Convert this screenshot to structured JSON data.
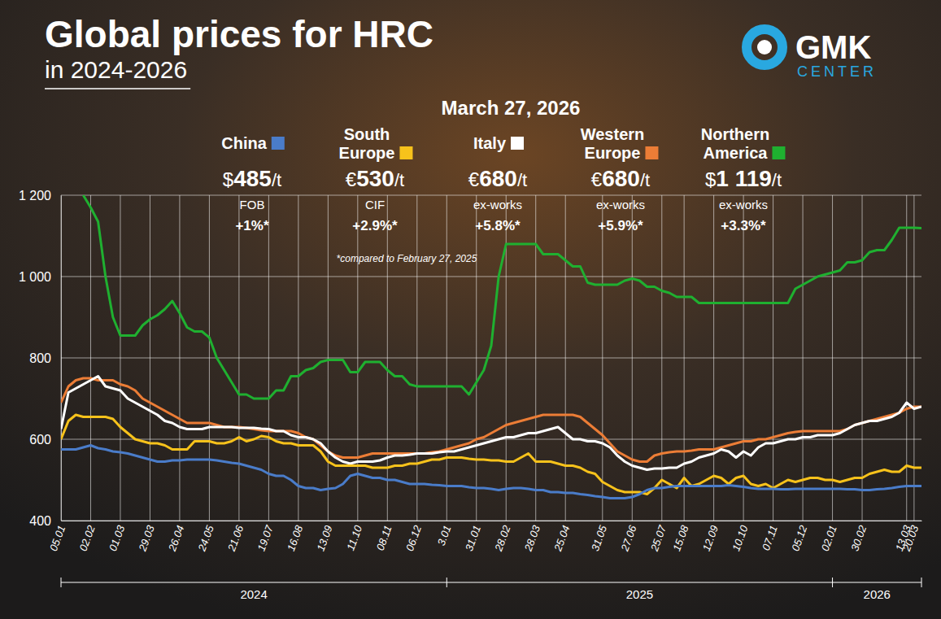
{
  "chart_data": {
    "type": "line",
    "title": "Global prices for HRC",
    "subtitle": "in 2024-2026",
    "date_label": "March 27, 2026",
    "note": "*compared to February 27, 2025",
    "logo": {
      "name": "GMK",
      "tagline": "CENTER"
    },
    "categories": [
      "05.01",
      null,
      null,
      null,
      "02.02",
      null,
      null,
      null,
      "01.03",
      null,
      null,
      null,
      "29.03",
      null,
      null,
      null,
      "26.04",
      null,
      null,
      null,
      "24.05",
      null,
      null,
      null,
      "21.06",
      null,
      null,
      null,
      "19.07",
      null,
      null,
      null,
      "16.08",
      null,
      null,
      null,
      "13.09",
      null,
      null,
      null,
      "11.10",
      null,
      null,
      null,
      "08.11",
      null,
      null,
      null,
      "06.12",
      null,
      null,
      null,
      "3.01",
      null,
      null,
      null,
      "31.01",
      null,
      null,
      null,
      "28.02",
      null,
      null,
      null,
      "28.03",
      null,
      null,
      null,
      "25.04",
      null,
      null,
      null,
      null,
      "31.05",
      null,
      null,
      null,
      "27.06",
      null,
      null,
      null,
      "25.07",
      null,
      null,
      "15.08",
      null,
      null,
      null,
      "12.09",
      null,
      null,
      null,
      "10.10",
      null,
      null,
      null,
      "07.11",
      null,
      null,
      null,
      "05.12",
      null,
      null,
      null,
      "02.01",
      null,
      null,
      null,
      "30.02",
      null,
      null,
      null,
      null,
      null,
      "13.03",
      "20.03",
      null
    ],
    "x_groups": [
      {
        "label": "2024",
        "start": "05.01"
      },
      {
        "label": "2025",
        "start": "3.01"
      },
      {
        "label": "2026",
        "start": "02.01"
      }
    ],
    "series": [
      {
        "name": "China",
        "color": "#4a7cc9",
        "latest": {
          "currency": "$",
          "price": 485,
          "unit": "/t",
          "basis": "FOB",
          "change": "+1%*"
        },
        "values": [
          575,
          575,
          575,
          580,
          585,
          578,
          575,
          570,
          568,
          565,
          560,
          555,
          550,
          545,
          545,
          548,
          548,
          550,
          550,
          550,
          550,
          548,
          545,
          542,
          540,
          535,
          530,
          525,
          515,
          510,
          510,
          500,
          485,
          480,
          480,
          475,
          478,
          480,
          490,
          510,
          515,
          510,
          505,
          505,
          500,
          500,
          495,
          490,
          490,
          490,
          488,
          487,
          485,
          485,
          485,
          482,
          480,
          480,
          478,
          475,
          478,
          480,
          480,
          478,
          475,
          475,
          470,
          470,
          468,
          468,
          465,
          463,
          460,
          458,
          455,
          455,
          455,
          458,
          465,
          475,
          480,
          480,
          483,
          485,
          485,
          485,
          485,
          485,
          485,
          485,
          487,
          485,
          483,
          480,
          478,
          478,
          478,
          477,
          477,
          478,
          478,
          478,
          478,
          478,
          478,
          478,
          477,
          477,
          475,
          475,
          477,
          478,
          480,
          483,
          485,
          485,
          485
        ]
      },
      {
        "name": "South Europe",
        "color": "#f7c21b",
        "latest": {
          "currency": "€",
          "price": 530,
          "unit": "/t",
          "basis": "CIF",
          "change": "+2.9%*"
        },
        "values": [
          600,
          645,
          660,
          655,
          655,
          655,
          655,
          650,
          630,
          615,
          600,
          595,
          590,
          590,
          585,
          575,
          575,
          575,
          595,
          595,
          595,
          590,
          590,
          595,
          605,
          595,
          600,
          608,
          605,
          595,
          590,
          590,
          585,
          585,
          585,
          570,
          545,
          535,
          535,
          535,
          535,
          535,
          530,
          530,
          530,
          535,
          535,
          540,
          540,
          545,
          550,
          550,
          555,
          555,
          555,
          552,
          550,
          550,
          548,
          548,
          545,
          545,
          555,
          565,
          545,
          545,
          545,
          540,
          535,
          535,
          530,
          520,
          515,
          495,
          485,
          475,
          470,
          470,
          470,
          465,
          480,
          500,
          490,
          480,
          505,
          485,
          490,
          500,
          510,
          505,
          490,
          505,
          510,
          490,
          485,
          490,
          480,
          490,
          500,
          495,
          500,
          505,
          505,
          500,
          500,
          495,
          500,
          505,
          505,
          515,
          520,
          525,
          520,
          520,
          535,
          530,
          530
        ]
      },
      {
        "name": "Italy",
        "color": "#ffffff",
        "latest": {
          "currency": "€",
          "price": 680,
          "unit": "/t",
          "basis": "ex-works",
          "change": "+5.8%*"
        },
        "values": [
          625,
          715,
          725,
          735,
          745,
          755,
          730,
          725,
          720,
          700,
          690,
          680,
          670,
          660,
          645,
          640,
          630,
          625,
          625,
          625,
          630,
          630,
          630,
          630,
          628,
          628,
          628,
          626,
          625,
          620,
          620,
          610,
          605,
          605,
          600,
          590,
          570,
          555,
          545,
          540,
          545,
          545,
          545,
          548,
          555,
          560,
          560,
          562,
          565,
          565,
          565,
          568,
          570,
          570,
          575,
          580,
          585,
          590,
          595,
          600,
          605,
          605,
          610,
          615,
          615,
          620,
          625,
          630,
          615,
          600,
          600,
          595,
          595,
          590,
          580,
          560,
          545,
          535,
          530,
          525,
          528,
          528,
          530,
          530,
          540,
          545,
          555,
          560,
          565,
          575,
          570,
          555,
          570,
          560,
          580,
          590,
          590,
          595,
          600,
          600,
          605,
          605,
          610,
          610,
          610,
          615,
          625,
          635,
          640,
          645,
          645,
          650,
          655,
          665,
          690,
          675,
          680
        ]
      },
      {
        "name": "Western Europe",
        "color": "#ec7d36",
        "latest": {
          "currency": "€",
          "price": 680,
          "unit": "/t",
          "basis": "ex-works",
          "change": "+5.9%*"
        },
        "values": [
          690,
          730,
          745,
          750,
          750,
          745,
          745,
          745,
          735,
          730,
          720,
          700,
          690,
          680,
          670,
          660,
          650,
          640,
          640,
          640,
          640,
          635,
          630,
          630,
          630,
          628,
          625,
          622,
          620,
          620,
          620,
          620,
          615,
          605,
          600,
          585,
          570,
          560,
          555,
          555,
          555,
          560,
          565,
          565,
          565,
          565,
          565,
          565,
          565,
          565,
          568,
          570,
          575,
          580,
          585,
          590,
          600,
          605,
          615,
          625,
          635,
          640,
          645,
          650,
          655,
          660,
          660,
          660,
          660,
          660,
          655,
          640,
          625,
          610,
          590,
          570,
          560,
          550,
          545,
          545,
          560,
          565,
          568,
          570,
          570,
          572,
          575,
          575,
          575,
          580,
          585,
          590,
          595,
          595,
          600,
          600,
          605,
          610,
          615,
          618,
          620,
          620,
          620,
          620,
          620,
          620,
          625,
          635,
          640,
          645,
          650,
          655,
          660,
          665,
          675,
          680,
          680
        ]
      },
      {
        "name": "Northern America",
        "color": "#1fb030",
        "latest": {
          "currency": "$",
          "price": 1119,
          "price_label": "1 119",
          "unit": "/t",
          "basis": "ex-works",
          "change": "+3.3%*"
        },
        "values": [
          null,
          null,
          null,
          1200,
          1170,
          1135,
          1000,
          900,
          855,
          855,
          855,
          880,
          895,
          905,
          920,
          940,
          910,
          875,
          865,
          865,
          850,
          800,
          770,
          740,
          710,
          710,
          700,
          700,
          700,
          720,
          720,
          755,
          755,
          770,
          775,
          790,
          795,
          795,
          795,
          765,
          765,
          790,
          790,
          790,
          770,
          755,
          755,
          735,
          730,
          730,
          730,
          730,
          730,
          730,
          730,
          710,
          740,
          770,
          830,
          1000,
          1080,
          1080,
          1080,
          1080,
          1080,
          1055,
          1055,
          1055,
          1040,
          1025,
          1025,
          985,
          980,
          980,
          980,
          980,
          990,
          995,
          990,
          975,
          975,
          965,
          960,
          950,
          950,
          950,
          935,
          935,
          935,
          935,
          935,
          935,
          935,
          935,
          935,
          935,
          935,
          935,
          935,
          970,
          980,
          990,
          1000,
          1005,
          1010,
          1015,
          1035,
          1035,
          1040,
          1060,
          1065,
          1065,
          1090,
          1120,
          1120,
          1120,
          1119
        ]
      }
    ],
    "ylim": [
      400,
      1200
    ],
    "yticks": [
      400,
      600,
      800,
      {
        "value": 1000,
        "label": "1 000"
      },
      {
        "value": 1200,
        "label": "1 200"
      }
    ],
    "grid": true,
    "legend": "top"
  }
}
